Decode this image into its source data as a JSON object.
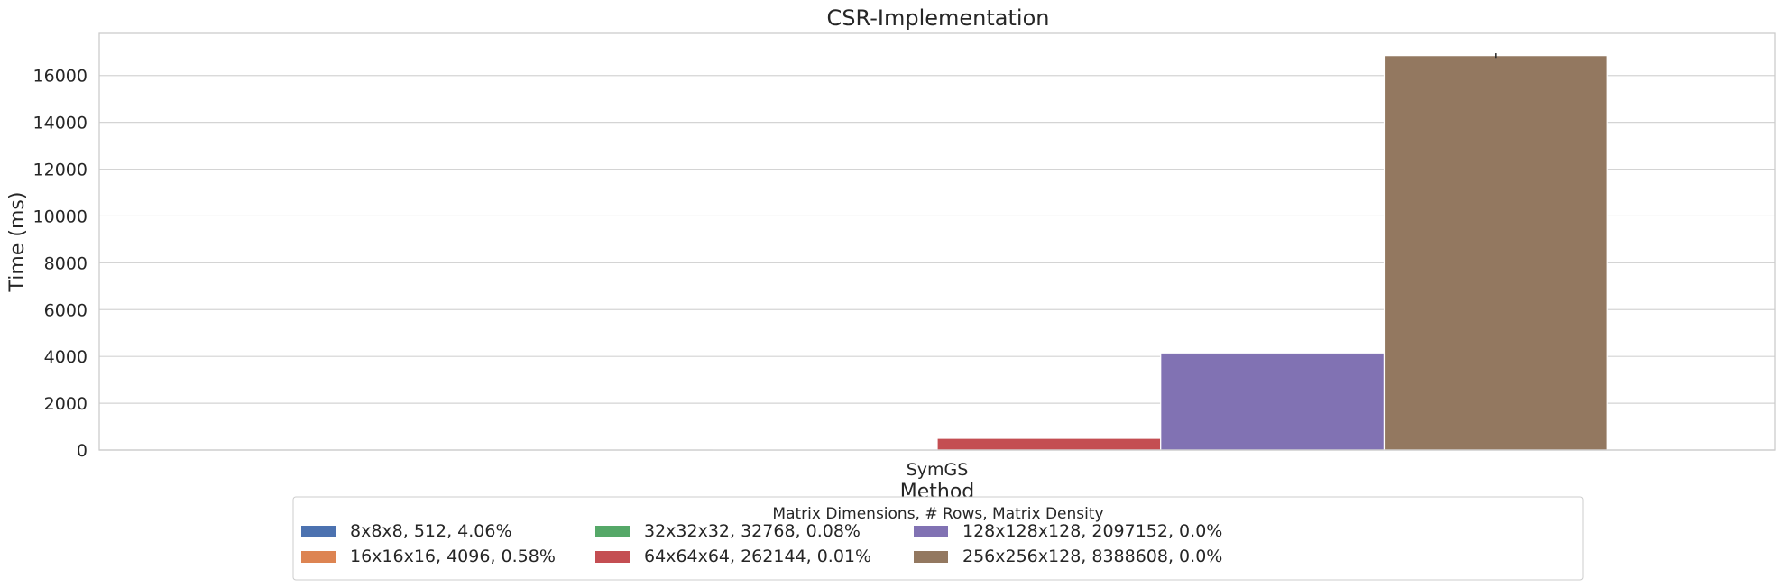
{
  "chart_data": {
    "type": "bar",
    "title": "CSR-Implementation",
    "xlabel": "Method",
    "ylabel": "Time (ms)",
    "categories": [
      "SymGS"
    ],
    "ylim": [
      0,
      17800
    ],
    "yticks": [
      0,
      2000,
      4000,
      6000,
      8000,
      10000,
      12000,
      14000,
      16000
    ],
    "grid": true,
    "legend": {
      "title": "Matrix Dimensions, # Rows, Matrix Density",
      "placement": "bottom-center",
      "columns": 4
    },
    "series": [
      {
        "name": "8x8x8, 512, 4.06%",
        "values": [
          0.5
        ],
        "color": "#4c72b0"
      },
      {
        "name": "16x16x16, 4096, 0.58%",
        "values": [
          3
        ],
        "color": "#dd8452"
      },
      {
        "name": "32x32x32, 32768, 0.08%",
        "values": [
          25
        ],
        "color": "#55a868"
      },
      {
        "name": "64x64x64, 262144, 0.01%",
        "values": [
          500
        ],
        "color": "#c44e52"
      },
      {
        "name": "128x128x128, 2097152, 0.0%",
        "values": [
          4150
        ],
        "color": "#8172b3"
      },
      {
        "name": "256x256x128, 8388608, 0.0%",
        "values": [
          16850
        ],
        "color": "#937860",
        "error": [
          100
        ]
      }
    ]
  }
}
